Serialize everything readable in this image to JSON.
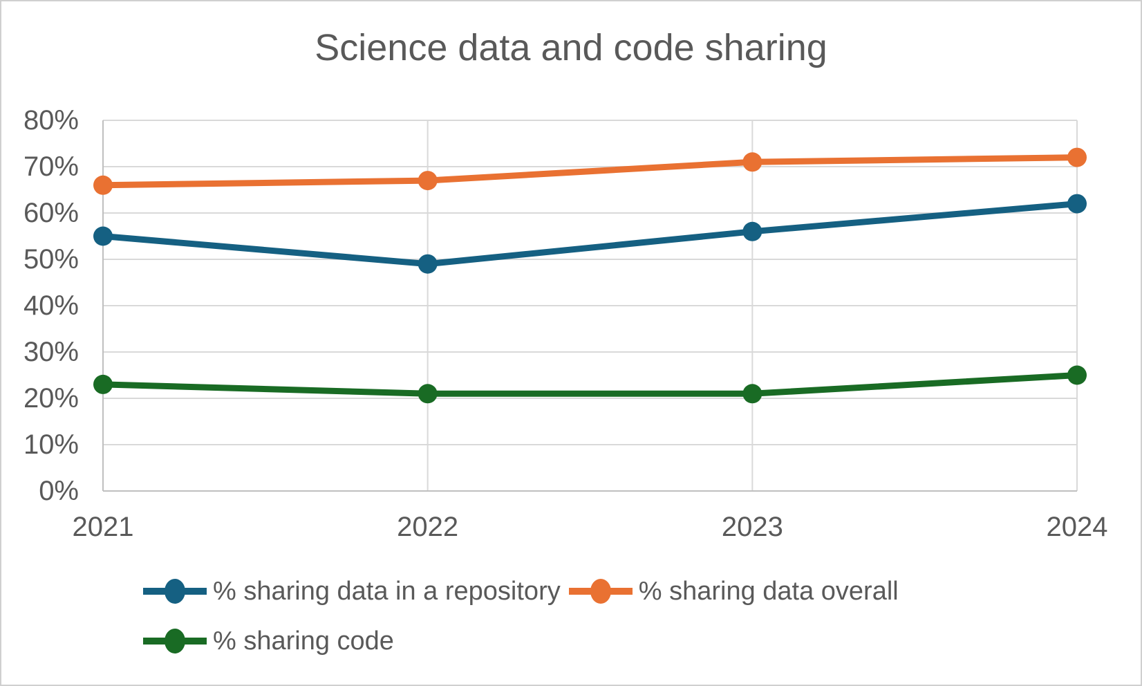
{
  "chart_data": {
    "type": "line",
    "title": "Science data and code sharing",
    "categories": [
      "2021",
      "2022",
      "2023",
      "2024"
    ],
    "series": [
      {
        "name": "% sharing data in a repository",
        "color": "#156082",
        "values": [
          55,
          49,
          56,
          62
        ]
      },
      {
        "name": "% sharing data overall",
        "color": "#E97132",
        "values": [
          66,
          67,
          71,
          72
        ]
      },
      {
        "name": "% sharing code",
        "color": "#196B24",
        "values": [
          23,
          21,
          21,
          25
        ]
      }
    ],
    "xlabel": "",
    "ylabel": "",
    "ylim": [
      0,
      80
    ],
    "ytick_step": 10,
    "ytick_labels": [
      "0%",
      "10%",
      "20%",
      "30%",
      "40%",
      "50%",
      "60%",
      "70%",
      "80%"
    ],
    "grid": true,
    "legend_position": "bottom",
    "colors": {
      "text": "#595959",
      "gridline": "#D9D9D9",
      "axis": "#BFBFBF",
      "background": "#FFFFFF",
      "border": "#CFCFCF"
    }
  }
}
